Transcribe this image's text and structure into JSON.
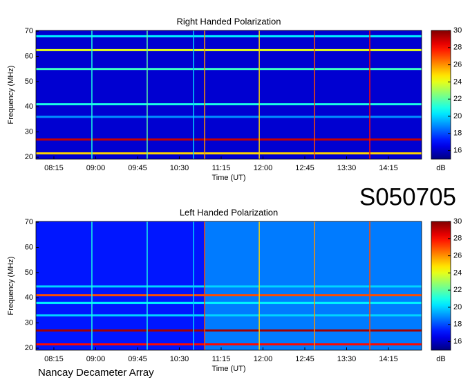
{
  "id_label": "S050705",
  "footer": "Nancay Decameter Array",
  "chart_data": [
    {
      "type": "heatmap",
      "title": "Right Handed Polarization",
      "x_label": "Time (UT)",
      "y_label": "Frequency (MHz)",
      "colorbar_label": "dB",
      "colormap": "jet",
      "xlim": [
        475.7,
        890.7
      ],
      "xticks": [
        {
          "value": 495,
          "label": "08:15"
        },
        {
          "value": 540,
          "label": "09:00"
        },
        {
          "value": 585,
          "label": "09:45"
        },
        {
          "value": 630,
          "label": "10:30"
        },
        {
          "value": 675,
          "label": "11:15"
        },
        {
          "value": 720,
          "label": "12:00"
        },
        {
          "value": 765,
          "label": "12:45"
        },
        {
          "value": 810,
          "label": "13:30"
        },
        {
          "value": 855,
          "label": "14:15"
        }
      ],
      "ylim": [
        19.2,
        70.3
      ],
      "yticks": [
        20,
        30,
        40,
        50,
        60,
        70
      ],
      "clim": [
        15,
        30
      ],
      "cticks": [
        16,
        18,
        20,
        22,
        24,
        26,
        28,
        30
      ],
      "background": 16.2,
      "bands": {
        "freq": [
          27,
          21.5,
          62.5,
          55,
          68,
          36,
          41
        ],
        "db": [
          29,
          25,
          24,
          21.5,
          20.5,
          19,
          21
        ]
      },
      "bursts": {
        "time": [
          535.9,
          595.4,
          645.3,
          657.2,
          716,
          775.4,
          834.9
        ],
        "db": [
          21,
          22,
          20,
          26,
          25,
          27,
          28
        ]
      }
    },
    {
      "type": "heatmap",
      "title": "Left Handed Polarization",
      "x_label": "Time (UT)",
      "y_label": "Frequency (MHz)",
      "colorbar_label": "dB",
      "colormap": "jet",
      "xlim": [
        475.7,
        890.7
      ],
      "xticks": [
        {
          "value": 495,
          "label": "08:15"
        },
        {
          "value": 540,
          "label": "09:00"
        },
        {
          "value": 585,
          "label": "09:45"
        },
        {
          "value": 630,
          "label": "10:30"
        },
        {
          "value": 675,
          "label": "11:15"
        },
        {
          "value": 720,
          "label": "12:00"
        },
        {
          "value": 765,
          "label": "12:45"
        },
        {
          "value": 810,
          "label": "13:30"
        },
        {
          "value": 855,
          "label": "14:15"
        }
      ],
      "ylim": [
        19.2,
        70.3
      ],
      "yticks": [
        20,
        30,
        40,
        50,
        60,
        70
      ],
      "clim": [
        15,
        30
      ],
      "cticks": [
        16,
        18,
        20,
        22,
        24,
        26,
        28,
        30
      ],
      "background": 17.2,
      "regions": {
        "start": [
          657.2
        ],
        "end": [
          890.7
        ],
        "db": [
          19.2
        ]
      },
      "bands": {
        "freq": [
          27,
          21.5,
          38,
          33,
          41,
          44.5
        ],
        "db": [
          29.5,
          28,
          20.5,
          20,
          27,
          20
        ]
      },
      "bursts": {
        "time": [
          535.9,
          595.4,
          645.3,
          657.2,
          716,
          775.4,
          834.9
        ],
        "db": [
          21,
          21,
          20,
          27,
          25,
          26,
          27
        ]
      }
    }
  ]
}
